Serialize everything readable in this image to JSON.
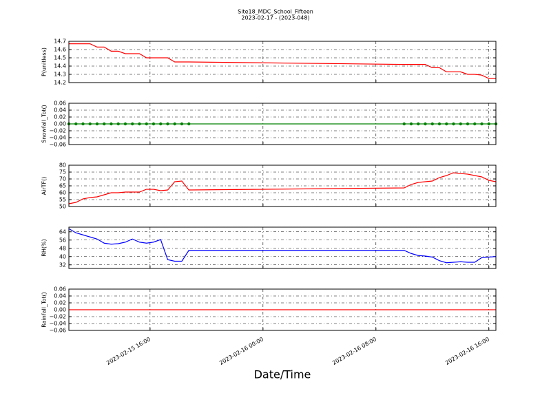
{
  "title": "Site18_MDC_School_Fifteen",
  "subtitle": "2023-02-17 - (2023-048)",
  "xlabel": "Date/Time",
  "chart_data": [
    {
      "type": "line",
      "ylabel": "P(unitless)",
      "color": "#ff0000",
      "markers": false,
      "grid": true,
      "x": [
        "2023-02-15 10:15",
        "2023-02-15 10:45",
        "2023-02-15 11:15",
        "2023-02-15 11:45",
        "2023-02-15 12:15",
        "2023-02-15 12:45",
        "2023-02-15 13:15",
        "2023-02-15 13:45",
        "2023-02-15 14:15",
        "2023-02-15 14:45",
        "2023-02-15 15:15",
        "2023-02-15 15:45",
        "2023-02-15 16:15",
        "2023-02-15 16:45",
        "2023-02-15 17:15",
        "2023-02-15 17:45",
        "2023-02-15 18:15",
        "2023-02-15 18:45",
        "2023-02-16 10:00",
        "2023-02-16 10:30",
        "2023-02-16 11:00",
        "2023-02-16 11:30",
        "2023-02-16 12:00",
        "2023-02-16 12:30",
        "2023-02-16 13:00",
        "2023-02-16 13:30",
        "2023-02-16 14:00",
        "2023-02-16 14:30",
        "2023-02-16 15:00",
        "2023-02-16 15:30",
        "2023-02-16 16:00",
        "2023-02-16 16:30"
      ],
      "values": [
        14.67,
        14.67,
        14.67,
        14.67,
        14.63,
        14.63,
        14.58,
        14.58,
        14.55,
        14.55,
        14.55,
        14.5,
        14.5,
        14.5,
        14.5,
        14.45,
        14.45,
        14.45,
        14.42,
        14.42,
        14.42,
        14.42,
        14.38,
        14.38,
        14.33,
        14.33,
        14.33,
        14.3,
        14.3,
        14.29,
        14.25,
        14.25
      ],
      "xlim": [
        "2023-02-15 10:15",
        "2023-02-16 16:30"
      ],
      "xticks": [
        "2023-02-15 16:00",
        "2023-02-16 00:00",
        "2023-02-16 08:00",
        "2023-02-16 16:00"
      ],
      "ylim": [
        14.2,
        14.7
      ],
      "yticks": [
        14.2,
        14.3,
        14.4,
        14.5,
        14.6,
        14.7
      ]
    },
    {
      "type": "line",
      "ylabel": "Snowfall_Tot()",
      "color": "#008000",
      "markers": true,
      "grid": true,
      "x": [
        "2023-02-15 10:15",
        "2023-02-15 10:45",
        "2023-02-15 11:15",
        "2023-02-15 11:45",
        "2023-02-15 12:15",
        "2023-02-15 12:45",
        "2023-02-15 13:15",
        "2023-02-15 13:45",
        "2023-02-15 14:15",
        "2023-02-15 14:45",
        "2023-02-15 15:15",
        "2023-02-15 15:45",
        "2023-02-15 16:15",
        "2023-02-15 16:45",
        "2023-02-15 17:15",
        "2023-02-15 17:45",
        "2023-02-15 18:15",
        "2023-02-15 18:45",
        "2023-02-16 10:00",
        "2023-02-16 10:30",
        "2023-02-16 11:00",
        "2023-02-16 11:30",
        "2023-02-16 12:00",
        "2023-02-16 12:30",
        "2023-02-16 13:00",
        "2023-02-16 13:30",
        "2023-02-16 14:00",
        "2023-02-16 14:30",
        "2023-02-16 15:00",
        "2023-02-16 15:30",
        "2023-02-16 16:00",
        "2023-02-16 16:30"
      ],
      "values": [
        0,
        0,
        0,
        0,
        0,
        0,
        0,
        0,
        0,
        0,
        0,
        0,
        0,
        0,
        0,
        0,
        0,
        0,
        0,
        0,
        0,
        0,
        0,
        0,
        0,
        0,
        0,
        0,
        0,
        0,
        0,
        0
      ],
      "xlim": [
        "2023-02-15 10:15",
        "2023-02-16 16:30"
      ],
      "xticks": [
        "2023-02-15 16:00",
        "2023-02-16 00:00",
        "2023-02-16 08:00",
        "2023-02-16 16:00"
      ],
      "ylim": [
        -0.06,
        0.06
      ],
      "yticks": [
        {
          "value": -0.06,
          "label": "−0.06"
        },
        {
          "value": -0.04,
          "label": "−0.04"
        },
        {
          "value": -0.02,
          "label": "−0.02"
        },
        {
          "value": 0,
          "label": "0.00"
        },
        0.02,
        0.04,
        0.06
      ]
    },
    {
      "type": "line",
      "ylabel": "AirTF()",
      "color": "#ff0000",
      "markers": false,
      "grid": true,
      "x": [
        "2023-02-15 10:15",
        "2023-02-15 10:45",
        "2023-02-15 11:15",
        "2023-02-15 11:45",
        "2023-02-15 12:15",
        "2023-02-15 12:45",
        "2023-02-15 13:15",
        "2023-02-15 13:45",
        "2023-02-15 14:15",
        "2023-02-15 14:45",
        "2023-02-15 15:15",
        "2023-02-15 15:45",
        "2023-02-15 16:15",
        "2023-02-15 16:45",
        "2023-02-15 17:15",
        "2023-02-15 17:45",
        "2023-02-15 18:15",
        "2023-02-15 18:45",
        "2023-02-16 10:00",
        "2023-02-16 10:30",
        "2023-02-16 11:00",
        "2023-02-16 11:30",
        "2023-02-16 12:00",
        "2023-02-16 12:30",
        "2023-02-16 13:00",
        "2023-02-16 13:30",
        "2023-02-16 14:00",
        "2023-02-16 14:30",
        "2023-02-16 15:00",
        "2023-02-16 15:30",
        "2023-02-16 16:00",
        "2023-02-16 16:30"
      ],
      "values": [
        52,
        53,
        55.5,
        56.5,
        57,
        58.5,
        60,
        60,
        60.5,
        60.5,
        60.5,
        62.5,
        62.5,
        61.5,
        62,
        68,
        68.5,
        62,
        63.5,
        66,
        67.5,
        68,
        68.5,
        71,
        72.5,
        74.5,
        74,
        73.5,
        72.5,
        71.5,
        69,
        68
      ],
      "xlim": [
        "2023-02-15 10:15",
        "2023-02-16 16:30"
      ],
      "xticks": [
        "2023-02-15 16:00",
        "2023-02-16 00:00",
        "2023-02-16 08:00",
        "2023-02-16 16:00"
      ],
      "ylim": [
        50,
        80
      ],
      "yticks": [
        50,
        55,
        60,
        65,
        70,
        75,
        80
      ]
    },
    {
      "type": "line",
      "ylabel": "RH(%)",
      "color": "#0000ff",
      "markers": false,
      "grid": true,
      "x": [
        "2023-02-15 10:15",
        "2023-02-15 10:45",
        "2023-02-15 11:15",
        "2023-02-15 11:45",
        "2023-02-15 12:15",
        "2023-02-15 12:45",
        "2023-02-15 13:15",
        "2023-02-15 13:45",
        "2023-02-15 14:15",
        "2023-02-15 14:45",
        "2023-02-15 15:15",
        "2023-02-15 15:45",
        "2023-02-15 16:15",
        "2023-02-15 16:45",
        "2023-02-15 17:15",
        "2023-02-15 17:45",
        "2023-02-15 18:15",
        "2023-02-15 18:45",
        "2023-02-16 10:00",
        "2023-02-16 10:30",
        "2023-02-16 11:00",
        "2023-02-16 11:30",
        "2023-02-16 12:00",
        "2023-02-16 12:30",
        "2023-02-16 13:00",
        "2023-02-16 13:30",
        "2023-02-16 14:00",
        "2023-02-16 14:30",
        "2023-02-16 15:00",
        "2023-02-16 15:30",
        "2023-02-16 16:00",
        "2023-02-16 16:30"
      ],
      "values": [
        67,
        63,
        61,
        59,
        57,
        53,
        52,
        52.5,
        54,
        57,
        54,
        53,
        54,
        56.5,
        37,
        35.5,
        35.5,
        46,
        46,
        43,
        41,
        40.5,
        39.5,
        36,
        34,
        34.5,
        35,
        34.5,
        34.5,
        39,
        39.5,
        40
      ],
      "xlim": [
        "2023-02-15 10:15",
        "2023-02-16 16:30"
      ],
      "xticks": [
        "2023-02-15 16:00",
        "2023-02-16 00:00",
        "2023-02-16 08:00",
        "2023-02-16 16:00"
      ],
      "ylim": [
        28.5,
        68.5
      ],
      "yticks": [
        32,
        40,
        48,
        56,
        64
      ]
    },
    {
      "type": "line",
      "ylabel": "Rainfall_Tot()",
      "color": "#ff0000",
      "markers": false,
      "grid": true,
      "x": [
        "2023-02-15 10:15",
        "2023-02-15 10:45",
        "2023-02-15 11:15",
        "2023-02-15 11:45",
        "2023-02-15 12:15",
        "2023-02-15 12:45",
        "2023-02-15 13:15",
        "2023-02-15 13:45",
        "2023-02-15 14:15",
        "2023-02-15 14:45",
        "2023-02-15 15:15",
        "2023-02-15 15:45",
        "2023-02-15 16:15",
        "2023-02-15 16:45",
        "2023-02-15 17:15",
        "2023-02-15 17:45",
        "2023-02-15 18:15",
        "2023-02-15 18:45",
        "2023-02-16 10:00",
        "2023-02-16 10:30",
        "2023-02-16 11:00",
        "2023-02-16 11:30",
        "2023-02-16 12:00",
        "2023-02-16 12:30",
        "2023-02-16 13:00",
        "2023-02-16 13:30",
        "2023-02-16 14:00",
        "2023-02-16 14:30",
        "2023-02-16 15:00",
        "2023-02-16 15:30",
        "2023-02-16 16:00",
        "2023-02-16 16:30"
      ],
      "values": [
        0,
        0,
        0,
        0,
        0,
        0,
        0,
        0,
        0,
        0,
        0,
        0,
        0,
        0,
        0,
        0,
        0,
        0,
        0,
        0,
        0,
        0,
        0,
        0,
        0,
        0,
        0,
        0,
        0,
        0,
        0,
        0
      ],
      "xlim": [
        "2023-02-15 10:15",
        "2023-02-16 16:30"
      ],
      "xticks": [
        "2023-02-15 16:00",
        "2023-02-16 00:00",
        "2023-02-16 08:00",
        "2023-02-16 16:00"
      ],
      "ylim": [
        -0.06,
        0.06
      ],
      "yticks": [
        {
          "value": -0.06,
          "label": "−0.06"
        },
        {
          "value": -0.04,
          "label": "−0.04"
        },
        {
          "value": -0.02,
          "label": "−0.02"
        },
        {
          "value": 0,
          "label": "0.00"
        },
        0.02,
        0.04,
        0.06
      ]
    }
  ]
}
